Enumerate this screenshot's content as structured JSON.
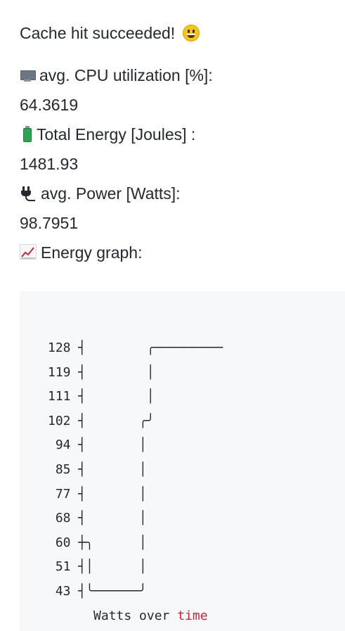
{
  "message": {
    "cache_line": "Cache hit succeeded!",
    "cache_icon": "smiley-icon",
    "cpu_label": "avg. CPU utilization [%]:",
    "cpu_icon": "monitor-icon",
    "cpu_value": "64.3619",
    "energy_label": "Total Energy [Joules] :",
    "energy_icon": "battery-icon",
    "energy_value": "1481.93",
    "power_label": "avg. Power [Watts]:",
    "power_icon": "plug-icon",
    "power_value": "98.7951",
    "graph_label": "Energy graph:",
    "graph_icon": "chart-increasing-icon"
  },
  "graph": {
    "lines": [
      "128 ┤        ╭─────────",
      "119 ┤        │",
      "111 ┤        │",
      "102 ┤       ╭╯",
      " 94 ┤       │",
      " 85 ┤       │",
      " 77 ┤       │",
      " 68 ┤       │",
      " 60 ┼╮      │",
      " 51 ┤│      │",
      " 43 ┤╰──────╯"
    ],
    "caption_prefix": "      Watts over ",
    "caption_keyword": "time",
    "keyword_color": "#cf222e"
  }
}
